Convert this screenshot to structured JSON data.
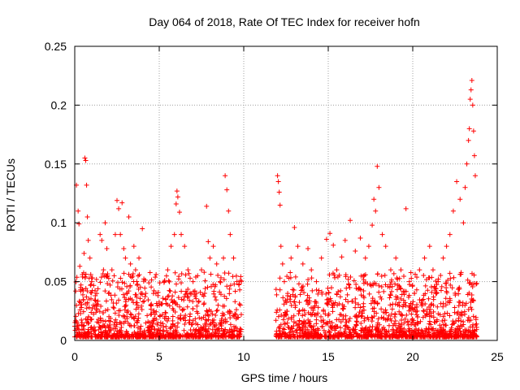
{
  "chart_data": {
    "type": "scatter",
    "title": "Day 064 of 2018, Rate Of TEC Index for receiver hofn",
    "xlabel": "GPS time / hours",
    "ylabel": "ROTI / TECUs",
    "xlim": [
      0,
      25
    ],
    "ylim": [
      0,
      0.25
    ],
    "x_ticks": [
      0,
      5,
      10,
      15,
      20,
      25
    ],
    "x_tick_labels": [
      "0",
      "5",
      "10",
      "15",
      "20",
      "25"
    ],
    "y_ticks": [
      0,
      0.05,
      0.1,
      0.15,
      0.2,
      0.25
    ],
    "y_tick_labels": [
      "0",
      "0.05",
      "0.1",
      "0.15",
      "0.2",
      "0.25"
    ],
    "grid": true,
    "marker": "plus",
    "color": "#ff0000",
    "data_gap_hours": [
      9.9,
      11.9
    ],
    "series": [
      {
        "name": "ROTI",
        "points": [
          [
            0.0,
            0.012
          ],
          [
            0.1,
            0.132
          ],
          [
            0.2,
            0.11
          ],
          [
            0.25,
            0.099
          ],
          [
            0.3,
            0.063
          ],
          [
            0.35,
            0.045
          ],
          [
            0.4,
            0.028
          ],
          [
            0.55,
            0.074
          ],
          [
            0.6,
            0.155
          ],
          [
            0.65,
            0.153
          ],
          [
            0.7,
            0.132
          ],
          [
            0.75,
            0.105
          ],
          [
            0.8,
            0.085
          ],
          [
            0.9,
            0.07
          ],
          [
            1.0,
            0.05
          ],
          [
            1.1,
            0.03
          ],
          [
            1.3,
            0.04
          ],
          [
            1.5,
            0.09
          ],
          [
            1.6,
            0.085
          ],
          [
            1.7,
            0.06
          ],
          [
            1.8,
            0.1
          ],
          [
            1.9,
            0.078
          ],
          [
            2.0,
            0.04
          ],
          [
            2.2,
            0.06
          ],
          [
            2.4,
            0.09
          ],
          [
            2.5,
            0.119
          ],
          [
            2.6,
            0.112
          ],
          [
            2.7,
            0.09
          ],
          [
            2.8,
            0.117
          ],
          [
            2.9,
            0.078
          ],
          [
            3.0,
            0.07
          ],
          [
            3.2,
            0.105
          ],
          [
            3.3,
            0.065
          ],
          [
            3.5,
            0.08
          ],
          [
            3.6,
            0.06
          ],
          [
            3.8,
            0.07
          ],
          [
            4.0,
            0.095
          ],
          [
            4.2,
            0.04
          ],
          [
            4.5,
            0.03
          ],
          [
            4.8,
            0.04
          ],
          [
            5.0,
            0.03
          ],
          [
            5.3,
            0.05
          ],
          [
            5.5,
            0.06
          ],
          [
            5.7,
            0.08
          ],
          [
            5.9,
            0.09
          ],
          [
            6.0,
            0.116
          ],
          [
            6.05,
            0.127
          ],
          [
            6.1,
            0.122
          ],
          [
            6.2,
            0.109
          ],
          [
            6.3,
            0.09
          ],
          [
            6.5,
            0.08
          ],
          [
            6.7,
            0.06
          ],
          [
            7.0,
            0.05
          ],
          [
            7.2,
            0.04
          ],
          [
            7.5,
            0.06
          ],
          [
            7.8,
            0.114
          ],
          [
            7.9,
            0.084
          ],
          [
            8.0,
            0.07
          ],
          [
            8.2,
            0.08
          ],
          [
            8.4,
            0.065
          ],
          [
            8.6,
            0.05
          ],
          [
            8.8,
            0.07
          ],
          [
            8.9,
            0.14
          ],
          [
            9.0,
            0.128
          ],
          [
            9.1,
            0.11
          ],
          [
            9.2,
            0.09
          ],
          [
            9.4,
            0.07
          ],
          [
            9.6,
            0.05
          ],
          [
            9.8,
            0.03
          ],
          [
            12.0,
            0.14
          ],
          [
            12.05,
            0.135
          ],
          [
            12.1,
            0.126
          ],
          [
            12.15,
            0.115
          ],
          [
            12.2,
            0.08
          ],
          [
            12.3,
            0.065
          ],
          [
            12.4,
            0.05
          ],
          [
            12.6,
            0.04
          ],
          [
            12.8,
            0.07
          ],
          [
            13.0,
            0.096
          ],
          [
            13.2,
            0.08
          ],
          [
            13.5,
            0.065
          ],
          [
            13.8,
            0.078
          ],
          [
            14.0,
            0.06
          ],
          [
            14.3,
            0.05
          ],
          [
            14.6,
            0.07
          ],
          [
            14.9,
            0.086
          ],
          [
            15.1,
            0.091
          ],
          [
            15.3,
            0.081
          ],
          [
            15.5,
            0.06
          ],
          [
            15.8,
            0.071
          ],
          [
            16.0,
            0.085
          ],
          [
            16.3,
            0.102
          ],
          [
            16.6,
            0.076
          ],
          [
            16.9,
            0.087
          ],
          [
            17.2,
            0.07
          ],
          [
            17.4,
            0.08
          ],
          [
            17.6,
            0.098
          ],
          [
            17.7,
            0.12
          ],
          [
            17.8,
            0.11
          ],
          [
            17.9,
            0.148
          ],
          [
            18.0,
            0.13
          ],
          [
            18.2,
            0.09
          ],
          [
            18.4,
            0.08
          ],
          [
            18.7,
            0.06
          ],
          [
            19.0,
            0.07
          ],
          [
            19.3,
            0.06
          ],
          [
            19.6,
            0.112
          ],
          [
            19.8,
            0.05
          ],
          [
            20.1,
            0.04
          ],
          [
            20.4,
            0.06
          ],
          [
            20.7,
            0.07
          ],
          [
            21.0,
            0.08
          ],
          [
            21.2,
            0.06
          ],
          [
            21.5,
            0.05
          ],
          [
            21.8,
            0.07
          ],
          [
            22.0,
            0.08
          ],
          [
            22.2,
            0.09
          ],
          [
            22.4,
            0.11
          ],
          [
            22.6,
            0.135
          ],
          [
            22.8,
            0.12
          ],
          [
            23.0,
            0.1
          ],
          [
            23.1,
            0.13
          ],
          [
            23.2,
            0.15
          ],
          [
            23.3,
            0.17
          ],
          [
            23.35,
            0.18
          ],
          [
            23.4,
            0.205
          ],
          [
            23.45,
            0.213
          ],
          [
            23.5,
            0.221
          ],
          [
            23.55,
            0.2
          ],
          [
            23.6,
            0.178
          ],
          [
            23.65,
            0.157
          ],
          [
            23.7,
            0.14
          ]
        ]
      }
    ]
  }
}
